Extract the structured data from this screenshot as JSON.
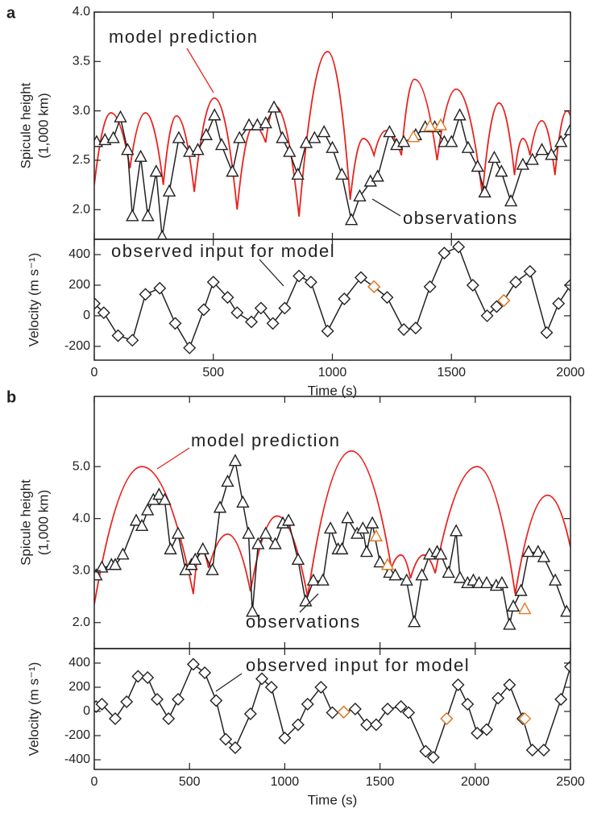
{
  "chart_data": [
    {
      "type": "line",
      "panel": "a",
      "ylabel": [
        "Spicule height",
        "(1,000 km)"
      ],
      "xlim": [
        0,
        2000
      ],
      "xticks": [
        0,
        500,
        1000,
        1500,
        2000
      ],
      "ylim": [
        1.7,
        4.0
      ],
      "yticks": [
        {
          "value": 2.0,
          "label": "2.0"
        },
        2.5,
        {
          "value": 3.0,
          "label": "3.0"
        },
        3.5,
        {
          "value": 4.0,
          "label": "4.0"
        }
      ],
      "annotations": [
        {
          "text": "model prediction",
          "color": "#e8231e"
        },
        {
          "text": "observations",
          "color": "#222222"
        }
      ],
      "series": [
        {
          "color": "#e8231e",
          "style": "arcs",
          "x": [
            0,
            70,
            150,
            215,
            290,
            345,
            420,
            505,
            600,
            670,
            720,
            760,
            860,
            980,
            1075,
            1130,
            1175,
            1225,
            1290,
            1345,
            1440,
            1520,
            1630,
            1700,
            1765,
            1800,
            1830,
            1880,
            1935,
            1985,
            2000
          ],
          "values": [
            2.25,
            2.98,
            2.42,
            2.98,
            2.25,
            2.95,
            2.18,
            3.13,
            2.0,
            2.85,
            2.68,
            3.05,
            1.93,
            3.6,
            2.1,
            2.72,
            2.55,
            2.8,
            2.55,
            3.32,
            2.5,
            3.22,
            2.15,
            3.08,
            2.35,
            2.72,
            2.55,
            2.9,
            2.35,
            3.0,
            2.95
          ]
        },
        {
          "color": "#222222",
          "style": "line",
          "marker": "triangle",
          "x": [
            10,
            45,
            80,
            110,
            140,
            160,
            195,
            225,
            260,
            285,
            315,
            355,
            400,
            435,
            470,
            505,
            535,
            580,
            610,
            650,
            685,
            720,
            755,
            790,
            820,
            855,
            890,
            925,
            965,
            1000,
            1040,
            1080,
            1115,
            1160,
            1190,
            1240,
            1270,
            1300,
            1350,
            1390,
            1430,
            1470,
            1500,
            1535,
            1570,
            1610,
            1640,
            1680,
            1710,
            1750,
            1800,
            1840,
            1880,
            1920,
            1960,
            2000
          ],
          "values": [
            2.68,
            2.7,
            2.72,
            2.93,
            2.6,
            1.93,
            2.53,
            1.93,
            2.38,
            1.72,
            2.18,
            2.72,
            2.58,
            2.6,
            2.75,
            2.95,
            2.65,
            2.38,
            2.72,
            2.85,
            2.85,
            2.87,
            3.03,
            2.72,
            2.58,
            2.35,
            2.67,
            2.72,
            2.78,
            2.62,
            2.35,
            1.89,
            2.13,
            2.28,
            2.33,
            2.78,
            2.65,
            2.68,
            2.75,
            2.83,
            2.83,
            2.68,
            2.68,
            2.95,
            2.62,
            2.43,
            2.17,
            2.52,
            2.38,
            2.08,
            2.45,
            2.5,
            2.6,
            2.55,
            2.68,
            2.8
          ]
        },
        {
          "color": "#e07b22",
          "style": "points",
          "marker": "triangle",
          "x": [
            1340,
            1410,
            1455
          ],
          "values": [
            2.73,
            2.84,
            2.85
          ]
        }
      ]
    },
    {
      "type": "line",
      "ylabel": [
        "Velocity (m s⁻¹)"
      ],
      "xlabel": "Time (s)",
      "xlim": [
        0,
        2000
      ],
      "xticks": [
        0,
        500,
        1000,
        1500,
        2000
      ],
      "ylim": [
        -290,
        500
      ],
      "yticks": [
        -200,
        0,
        200,
        400
      ],
      "annotations": [
        {
          "text": "observed input for model",
          "color": "#222222"
        }
      ],
      "series": [
        {
          "color": "#222222",
          "style": "line",
          "marker": "diamond",
          "x": [
            0,
            40,
            100,
            160,
            215,
            275,
            340,
            400,
            460,
            500,
            560,
            600,
            660,
            700,
            750,
            800,
            860,
            910,
            980,
            1050,
            1120,
            1175,
            1230,
            1300,
            1350,
            1410,
            1470,
            1530,
            1590,
            1650,
            1690,
            1720,
            1770,
            1830,
            1900,
            1950,
            2000
          ],
          "values": [
            80,
            20,
            -130,
            -160,
            140,
            180,
            -50,
            -210,
            40,
            220,
            120,
            20,
            -40,
            50,
            -50,
            50,
            260,
            220,
            -100,
            110,
            250,
            190,
            120,
            -90,
            -80,
            190,
            410,
            450,
            200,
            0,
            60,
            100,
            220,
            290,
            -110,
            80,
            200
          ]
        },
        {
          "color": "#e07b22",
          "style": "points",
          "marker": "diamond",
          "x": [
            1175,
            1720
          ],
          "values": [
            190,
            100
          ]
        }
      ]
    },
    {
      "type": "line",
      "panel": "b",
      "ylabel": [
        "Spicule height",
        "(1,000 km)"
      ],
      "xlim": [
        0,
        2500
      ],
      "xticks": [
        0,
        500,
        1000,
        1500,
        2000,
        2500
      ],
      "ylim": [
        1.5,
        6.35
      ],
      "yticks": [
        {
          "value": 2.0,
          "label": "2.0"
        },
        {
          "value": 3.0,
          "label": "3.0"
        },
        {
          "value": 4.0,
          "label": "4.0"
        },
        {
          "value": 5.0,
          "label": "5.0"
        }
      ],
      "annotations": [
        {
          "text": "model prediction",
          "color": "#e8231e"
        },
        {
          "text": "observations",
          "color": "#222222"
        }
      ],
      "series": [
        {
          "color": "#e8231e",
          "style": "arcs",
          "x": [
            0,
            250,
            520,
            560,
            600,
            700,
            820,
            960,
            1120,
            1350,
            1560,
            1610,
            1660,
            1730,
            1790,
            2010,
            2210,
            2380,
            2500
          ],
          "values": [
            2.35,
            5.0,
            2.55,
            3.4,
            3.05,
            3.7,
            2.6,
            4.05,
            2.5,
            5.3,
            3.05,
            3.3,
            2.85,
            3.3,
            2.95,
            5.0,
            2.55,
            4.45,
            3.45
          ]
        },
        {
          "color": "#222222",
          "style": "line",
          "marker": "triangle",
          "x": [
            10,
            40,
            90,
            110,
            150,
            220,
            250,
            280,
            310,
            340,
            370,
            400,
            440,
            480,
            510,
            530,
            570,
            620,
            660,
            700,
            740,
            780,
            810,
            830,
            860,
            900,
            950,
            990,
            1020,
            1070,
            1110,
            1150,
            1200,
            1240,
            1280,
            1300,
            1330,
            1380,
            1410,
            1430,
            1460,
            1500,
            1550,
            1580,
            1640,
            1680,
            1720,
            1760,
            1800,
            1820,
            1860,
            1900,
            1920,
            1960,
            1990,
            2020,
            2060,
            2110,
            2140,
            2180,
            2200,
            2240,
            2280,
            2330,
            2360,
            2420,
            2480
          ],
          "values": [
            2.9,
            3.05,
            3.1,
            3.1,
            3.3,
            3.95,
            3.85,
            4.15,
            4.35,
            4.45,
            4.35,
            3.4,
            3.7,
            3.0,
            3.1,
            3.2,
            3.4,
            3.0,
            4.2,
            4.7,
            5.1,
            4.3,
            3.7,
            2.2,
            3.5,
            3.7,
            3.5,
            3.9,
            3.95,
            3.2,
            2.4,
            2.8,
            2.8,
            3.8,
            3.4,
            3.4,
            4.0,
            3.7,
            3.8,
            3.35,
            3.9,
            3.15,
            2.95,
            2.9,
            2.8,
            2.0,
            2.9,
            3.3,
            3.35,
            3.3,
            2.95,
            3.75,
            2.85,
            2.75,
            2.8,
            2.75,
            2.75,
            2.7,
            2.75,
            1.95,
            2.3,
            2.6,
            3.35,
            3.35,
            3.25,
            2.8,
            2.2
          ]
        },
        {
          "color": "#e07b22",
          "style": "points",
          "marker": "triangle",
          "x": [
            1480,
            1540,
            2260
          ],
          "values": [
            3.65,
            3.1,
            2.25
          ]
        }
      ]
    },
    {
      "type": "line",
      "ylabel": [
        "Velocity (m s⁻¹)"
      ],
      "xlabel": "Time (s)",
      "xlim": [
        0,
        2500
      ],
      "xticks": [
        0,
        500,
        1000,
        1500,
        2000,
        2500
      ],
      "ylim": [
        -480,
        520
      ],
      "yticks": [
        -400,
        -200,
        0,
        200,
        400
      ],
      "annotations": [
        {
          "text": "observed input for model",
          "color": "#222222"
        }
      ],
      "series": [
        {
          "color": "#222222",
          "style": "line",
          "marker": "diamond",
          "x": [
            10,
            40,
            110,
            170,
            230,
            280,
            330,
            390,
            440,
            520,
            580,
            640,
            690,
            740,
            820,
            880,
            930,
            1000,
            1070,
            1120,
            1190,
            1250,
            1310,
            1370,
            1430,
            1480,
            1540,
            1610,
            1650,
            1740,
            1780,
            1850,
            1910,
            1960,
            2010,
            2060,
            2120,
            2180,
            2250,
            2300,
            2360,
            2450,
            2500
          ],
          "values": [
            40,
            60,
            -60,
            80,
            290,
            280,
            100,
            -60,
            100,
            390,
            320,
            90,
            -230,
            -300,
            -20,
            270,
            200,
            -220,
            -110,
            60,
            200,
            -10,
            -5,
            20,
            -110,
            -110,
            20,
            40,
            -10,
            -330,
            -380,
            -60,
            220,
            60,
            -180,
            -150,
            110,
            220,
            -60,
            -320,
            -320,
            100,
            370
          ]
        },
        {
          "color": "#e07b22",
          "style": "points",
          "marker": "diamond",
          "x": [
            1310,
            1850,
            2260
          ],
          "values": [
            -5,
            -60,
            -60
          ]
        }
      ]
    }
  ]
}
